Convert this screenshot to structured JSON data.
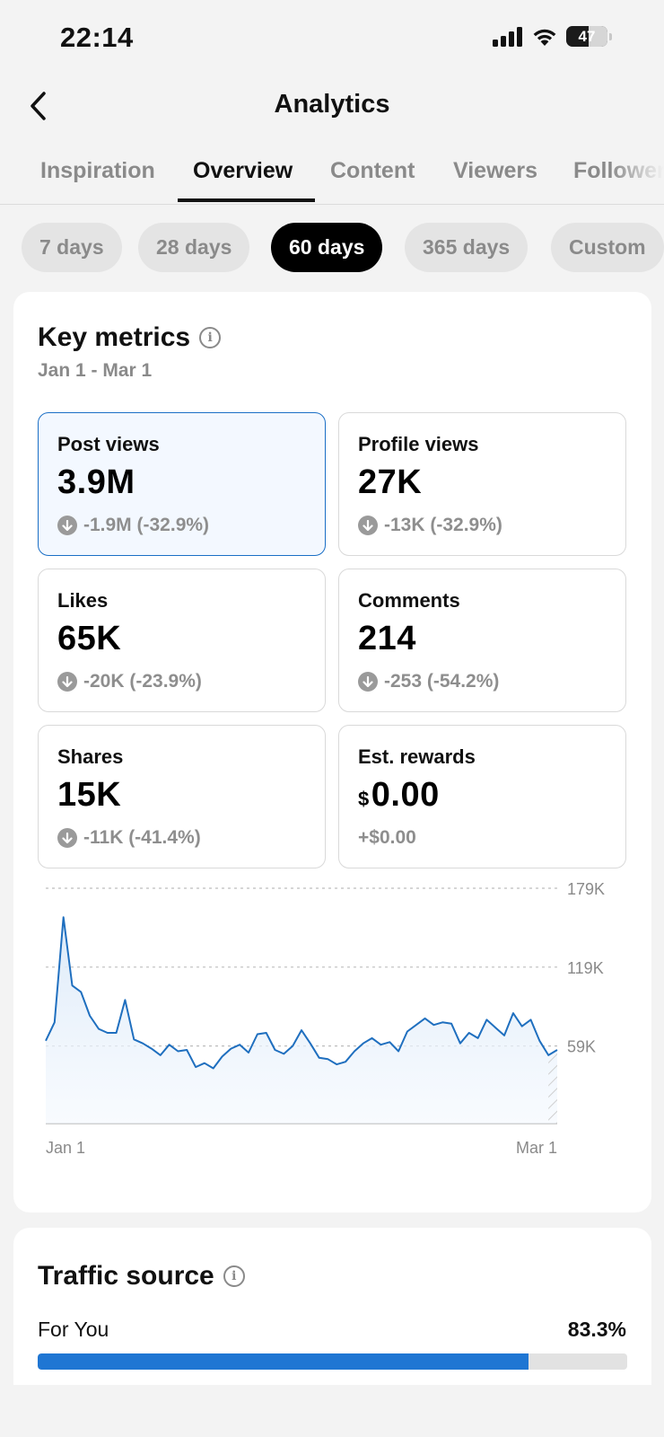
{
  "status_bar": {
    "time": "22:14",
    "battery": "47"
  },
  "header": {
    "title": "Analytics"
  },
  "tabs": [
    {
      "label": "Inspiration",
      "active": false
    },
    {
      "label": "Overview",
      "active": true
    },
    {
      "label": "Content",
      "active": false
    },
    {
      "label": "Viewers",
      "active": false
    },
    {
      "label": "Followers",
      "active": false
    }
  ],
  "date_chips": [
    {
      "label": "7 days",
      "active": false
    },
    {
      "label": "28 days",
      "active": false
    },
    {
      "label": "60 days",
      "active": true
    },
    {
      "label": "365 days",
      "active": false
    },
    {
      "label": "Custom",
      "active": false
    }
  ],
  "key_metrics": {
    "title": "Key metrics",
    "date_range": "Jan 1 - Mar 1",
    "items": [
      {
        "label": "Post views",
        "value": "3.9M",
        "change": "-1.9M (-32.9%)",
        "trend": "down",
        "selected": true
      },
      {
        "label": "Profile views",
        "value": "27K",
        "change": "-13K (-32.9%)",
        "trend": "down",
        "selected": false
      },
      {
        "label": "Likes",
        "value": "65K",
        "change": "-20K (-23.9%)",
        "trend": "down",
        "selected": false
      },
      {
        "label": "Comments",
        "value": "214",
        "change": "-253 (-54.2%)",
        "trend": "down",
        "selected": false
      },
      {
        "label": "Shares",
        "value": "15K",
        "change": "-11K (-41.4%)",
        "trend": "down",
        "selected": false
      },
      {
        "label": "Est. rewards",
        "currency": "$",
        "value": "0.00",
        "change": "+$0.00",
        "trend": "none",
        "selected": false
      }
    ]
  },
  "chart_data": {
    "type": "area",
    "x_start_label": "Jan 1",
    "x_end_label": "Mar 1",
    "y_ticks": [
      {
        "value": 179000,
        "label": "179K"
      },
      {
        "value": 119000,
        "label": "119K"
      },
      {
        "value": 59000,
        "label": "59K"
      }
    ],
    "ylim": [
      0,
      179000
    ],
    "values": [
      63000,
      77000,
      157000,
      105000,
      100000,
      82000,
      72000,
      69000,
      69000,
      94000,
      64000,
      61000,
      57000,
      52000,
      60000,
      55000,
      56000,
      43000,
      46000,
      42000,
      51000,
      57000,
      60000,
      54000,
      68000,
      69000,
      56000,
      53000,
      59000,
      71000,
      61000,
      50000,
      49000,
      45000,
      47000,
      55000,
      61000,
      65000,
      60000,
      62000,
      55000,
      70000,
      75000,
      80000,
      75000,
      77000,
      76000,
      61000,
      69000,
      65000,
      79000,
      73000,
      67000,
      84000,
      74000,
      79000,
      63000,
      52000,
      56000
    ],
    "incomplete_last_day": true,
    "colors": {
      "line": "#1f6fbf",
      "fill": "#e3eefa",
      "grid": "#bdbdbd",
      "axis": "#cfcfcf"
    }
  },
  "traffic_source": {
    "title": "Traffic source",
    "rows": [
      {
        "label": "For You",
        "value": "83.3%",
        "fraction": 0.833
      }
    ]
  }
}
